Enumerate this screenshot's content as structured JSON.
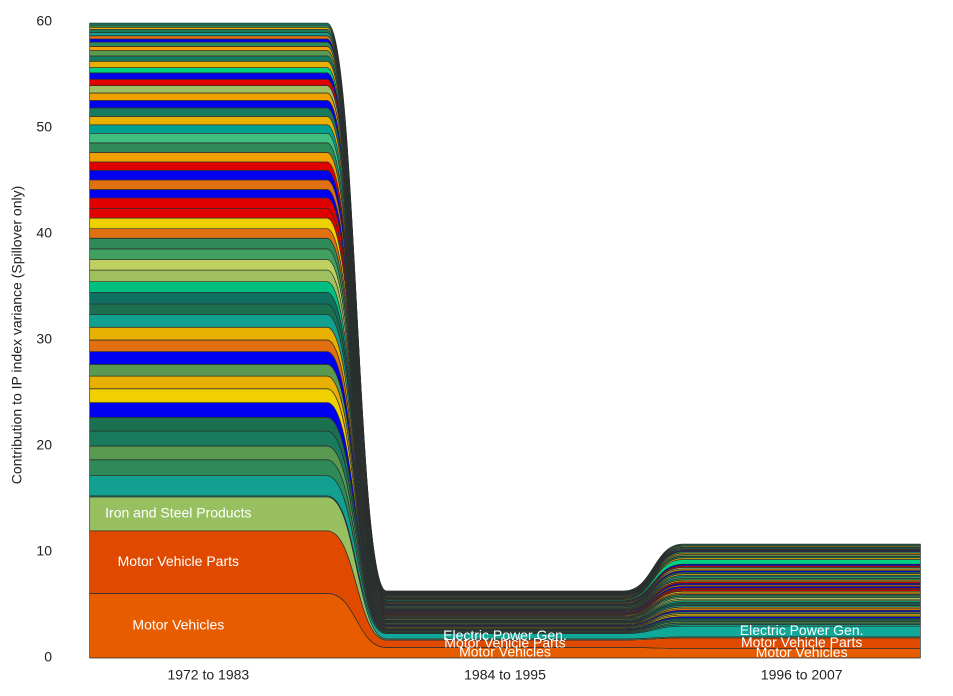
{
  "chart_data": {
    "type": "alluvial",
    "ylabel": "Contribution to IP index variance (Spillover only)",
    "categories": [
      "1972 to 1983",
      "1984 to 1995",
      "1996 to 2007"
    ],
    "ylim": [
      0,
      61
    ],
    "yticks": [
      0,
      10,
      20,
      30,
      40,
      50,
      60
    ],
    "grid": false,
    "label_color": "#ffffff",
    "series": [
      {
        "name": "Motor Vehicles",
        "color": "#e85c00",
        "values": [
          6.1,
          1.0,
          0.9
        ],
        "labels_shown": [
          0,
          1,
          2
        ]
      },
      {
        "name": "Motor Vehicle Parts",
        "color": "#e04a00",
        "values": [
          5.9,
          0.7,
          1.0
        ],
        "labels_shown": [
          0,
          1,
          2
        ]
      },
      {
        "name": "Iron and Steel Products",
        "color": "#98c060",
        "values": [
          3.2,
          0.1,
          0.1
        ],
        "labels_shown": [
          0
        ]
      },
      {
        "name": "Electric Power Gen.",
        "color": "#10a898",
        "values": [
          0.1,
          0.5,
          1.0
        ],
        "labels_shown": [
          1,
          2
        ]
      },
      {
        "color": "#12a090",
        "values": [
          1.9,
          0.08,
          0.15
        ]
      },
      {
        "color": "#2e8b57",
        "values": [
          1.5,
          0.08,
          0.15
        ]
      },
      {
        "color": "#5a9a50",
        "values": [
          1.3,
          0.08,
          0.15
        ]
      },
      {
        "color": "#1a7a5e",
        "values": [
          1.4,
          0.08,
          0.15
        ]
      },
      {
        "color": "#1b7050",
        "values": [
          1.3,
          0.08,
          0.15
        ]
      },
      {
        "color": "#0000f0",
        "values": [
          1.4,
          0.08,
          0.15
        ]
      },
      {
        "color": "#f0d000",
        "values": [
          1.3,
          0.08,
          0.15
        ]
      },
      {
        "color": "#e8b000",
        "values": [
          1.2,
          0.08,
          0.15
        ]
      },
      {
        "color": "#5a9a50",
        "values": [
          1.1,
          0.08,
          0.15
        ]
      },
      {
        "color": "#0000f0",
        "values": [
          1.2,
          0.08,
          0.15
        ]
      },
      {
        "color": "#e07010",
        "values": [
          1.1,
          0.08,
          0.15
        ]
      },
      {
        "color": "#e8b000",
        "values": [
          1.2,
          0.08,
          0.15
        ]
      },
      {
        "color": "#12a090",
        "values": [
          1.2,
          0.08,
          0.15
        ]
      },
      {
        "color": "#1b7050",
        "values": [
          1.0,
          0.08,
          0.15
        ]
      },
      {
        "color": "#0d7060",
        "values": [
          1.1,
          0.08,
          0.15
        ]
      },
      {
        "color": "#00c080",
        "values": [
          1.0,
          0.08,
          0.15
        ]
      },
      {
        "color": "#a0c060",
        "values": [
          1.1,
          0.08,
          0.15
        ]
      },
      {
        "color": "#c0d060",
        "values": [
          1.0,
          0.08,
          0.15
        ]
      },
      {
        "color": "#40a060",
        "values": [
          1.0,
          0.08,
          0.15
        ]
      },
      {
        "color": "#2e8b57",
        "values": [
          1.0,
          0.08,
          0.15
        ]
      },
      {
        "color": "#e07010",
        "values": [
          0.9,
          0.08,
          0.15
        ]
      },
      {
        "color": "#f0d000",
        "values": [
          1.0,
          0.08,
          0.15
        ]
      },
      {
        "color": "#e00000",
        "values": [
          0.9,
          0.08,
          0.15
        ]
      },
      {
        "color": "#e00000",
        "values": [
          1.0,
          0.08,
          0.15
        ]
      },
      {
        "color": "#0000f0",
        "values": [
          0.8,
          0.08,
          0.15
        ]
      },
      {
        "color": "#e07010",
        "values": [
          0.9,
          0.08,
          0.15
        ]
      },
      {
        "color": "#0000f0",
        "values": [
          0.9,
          0.08,
          0.15
        ]
      },
      {
        "color": "#e00000",
        "values": [
          0.8,
          0.08,
          0.15
        ]
      },
      {
        "color": "#f0a000",
        "values": [
          0.9,
          0.08,
          0.15
        ]
      },
      {
        "color": "#2e8b57",
        "values": [
          0.9,
          0.08,
          0.15
        ]
      },
      {
        "color": "#40c080",
        "values": [
          0.9,
          0.08,
          0.15
        ]
      },
      {
        "color": "#00a090",
        "values": [
          0.8,
          0.08,
          0.15
        ]
      },
      {
        "color": "#e8b000",
        "values": [
          0.8,
          0.08,
          0.15
        ]
      },
      {
        "color": "#1a7a5e",
        "values": [
          0.8,
          0.08,
          0.15
        ]
      },
      {
        "color": "#0000f0",
        "values": [
          0.7,
          0.08,
          0.15
        ]
      },
      {
        "color": "#f0a000",
        "values": [
          0.7,
          0.08,
          0.15
        ]
      },
      {
        "color": "#a0c060",
        "values": [
          0.7,
          0.08,
          0.15
        ]
      },
      {
        "color": "#e00000",
        "values": [
          0.6,
          0.08,
          0.15
        ]
      },
      {
        "color": "#0000f0",
        "values": [
          0.6,
          0.08,
          0.15
        ]
      },
      {
        "color": "#00d080",
        "values": [
          0.5,
          0.08,
          0.45
        ]
      },
      {
        "color": "#e8b000",
        "values": [
          0.6,
          0.08,
          0.15
        ]
      },
      {
        "color": "#1a7a5e",
        "values": [
          0.5,
          0.08,
          0.15
        ]
      },
      {
        "color": "#5a9a50",
        "values": [
          0.5,
          0.08,
          0.15
        ]
      },
      {
        "color": "#f0a000",
        "values": [
          0.4,
          0.08,
          0.15
        ]
      },
      {
        "color": "#2e8b57",
        "values": [
          0.4,
          0.08,
          0.15
        ]
      },
      {
        "color": "#0000f0",
        "values": [
          0.3,
          0.06,
          0.1
        ]
      },
      {
        "color": "#e07010",
        "values": [
          0.3,
          0.06,
          0.1
        ]
      },
      {
        "color": "#12a090",
        "values": [
          0.3,
          0.06,
          0.1
        ]
      },
      {
        "color": "#1a7a5e",
        "values": [
          0.3,
          0.06,
          0.1
        ]
      },
      {
        "color": "#e8b000",
        "values": [
          0.2,
          0.06,
          0.1
        ]
      },
      {
        "color": "#2e8b57",
        "values": [
          0.2,
          0.06,
          0.1
        ]
      },
      {
        "color": "#1a7a5e",
        "values": [
          0.2,
          0.06,
          0.1
        ]
      }
    ]
  }
}
